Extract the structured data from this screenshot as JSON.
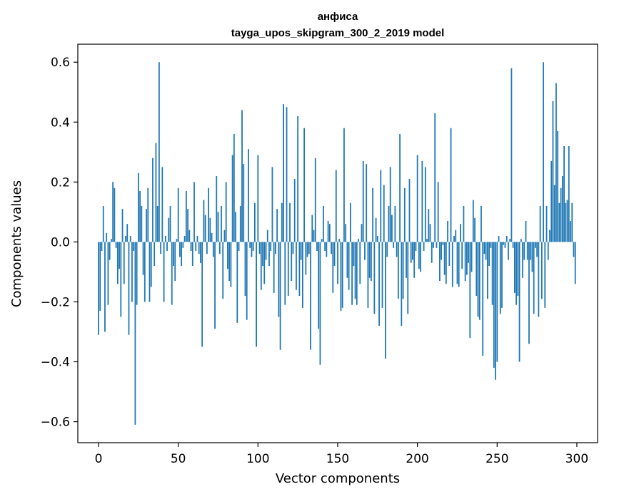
{
  "chart_data": {
    "type": "bar",
    "title_line1": "анфиса",
    "title_line2": "tayga_upos_skipgram_300_2_2019 model",
    "xlabel": "Vector components",
    "ylabel": "Components values",
    "xlim": [
      -13,
      313
    ],
    "ylim": [
      -0.67,
      0.66
    ],
    "xticks": [
      0,
      50,
      100,
      150,
      200,
      250,
      300
    ],
    "yticks": [
      -0.6,
      -0.4,
      -0.2,
      0.0,
      0.2,
      0.4,
      0.6
    ],
    "ytick_labels": [
      "−0.6",
      "−0.4",
      "−0.2",
      "0.0",
      "0.2",
      "0.4",
      "0.6"
    ],
    "bar_color": "#1f77b4",
    "grid": false,
    "values": [
      -0.31,
      -0.23,
      -0.03,
      0.12,
      -0.3,
      0.03,
      -0.21,
      -0.06,
      0.01,
      0.2,
      0.18,
      -0.02,
      -0.14,
      -0.09,
      -0.25,
      0.11,
      -0.14,
      0.02,
      0.06,
      -0.31,
      0.02,
      -0.2,
      -0.03,
      -0.61,
      -0.21,
      0.23,
      0.17,
      0.12,
      -0.11,
      -0.2,
      0.11,
      0.18,
      -0.2,
      -0.15,
      0.28,
      -0.08,
      0.33,
      0.12,
      0.6,
      -0.04,
      0.25,
      -0.2,
      0.02,
      -0.03,
      0.08,
      0.12,
      -0.21,
      -0.08,
      -0.13,
      0.01,
      0.18,
      -0.05,
      -0.08,
      -0.02,
      0.02,
      0.17,
      0.11,
      0.04,
      -0.03,
      -0.08,
      0.2,
      -0.03,
      0.02,
      -0.04,
      -0.07,
      -0.35,
      0.14,
      0.09,
      -0.04,
      0.18,
      0.08,
      0.03,
      -0.05,
      -0.29,
      0.22,
      0.1,
      -0.04,
      0.12,
      -0.19,
      0.04,
      0.2,
      -0.09,
      -0.13,
      -0.15,
      0.29,
      0.36,
      0.1,
      -0.27,
      -0.03,
      0.12,
      0.44,
      0.26,
      -0.18,
      -0.26,
      0.31,
      -0.02,
      -0.05,
      -0.03,
      0.13,
      -0.35,
      0.29,
      -0.04,
      -0.16,
      -0.08,
      -0.14,
      -0.06,
      0.04,
      -0.08,
      -0.03,
      0.25,
      -0.17,
      -0.04,
      0.11,
      -0.25,
      -0.36,
      0.13,
      0.46,
      -0.21,
      0.45,
      -0.18,
      0.13,
      -0.13,
      -0.04,
      0.21,
      -0.16,
      0.42,
      -0.18,
      -0.06,
      -0.22,
      0.38,
      -0.11,
      -0.05,
      -0.04,
      -0.36,
      0.09,
      0.04,
      0.28,
      -0.03,
      -0.29,
      -0.41,
      0.01,
      0.12,
      -0.03,
      -0.05,
      0.07,
      0.06,
      -0.04,
      -0.17,
      -0.08,
      0.24,
      -0.14,
      0.01,
      -0.23,
      -0.22,
      0.38,
      0.06,
      -0.12,
      -0.16,
      0.13,
      -0.21,
      -0.08,
      -0.19,
      -0.21,
      0.01,
      -0.14,
      0.06,
      0.27,
      -0.06,
      0.26,
      -0.22,
      -0.12,
      -0.13,
      0.18,
      -0.24,
      0.08,
      0.02,
      -0.28,
      0.24,
      -0.22,
      0.19,
      -0.39,
      -0.05,
      0.12,
      0.25,
      0.09,
      -0.02,
      0.12,
      -0.05,
      -0.19,
      0.36,
      -0.28,
      -0.19,
      0.18,
      -0.12,
      -0.24,
      0.21,
      -0.07,
      -0.06,
      -0.12,
      -0.03,
      0.29,
      -0.09,
      -0.1,
      0.27,
      -0.03,
      0.25,
      0.01,
      0.11,
      0.06,
      -0.07,
      -0.02,
      0.43,
      -0.02,
      0.2,
      -0.13,
      -0.06,
      -0.01,
      -0.11,
      -0.14,
      0.07,
      -0.08,
      0.38,
      -0.15,
      0.02,
      0.04,
      -0.14,
      -0.15,
      0.06,
      -0.09,
      0.12,
      -0.13,
      -0.11,
      -0.07,
      -0.32,
      -0.1,
      0.14,
      0.08,
      -0.18,
      -0.25,
      -0.26,
      0.12,
      -0.38,
      -0.04,
      -0.06,
      -0.19,
      -0.08,
      -0.02,
      -0.21,
      -0.42,
      -0.46,
      -0.4,
      0.02,
      -0.24,
      -0.22,
      -0.01,
      -0.02,
      0.02,
      -0.06,
      0.01,
      0.58,
      -0.02,
      -0.17,
      -0.21,
      -0.18,
      -0.4,
      0.01,
      -0.12,
      -0.06,
      0.07,
      -0.06,
      -0.34,
      -0.06,
      -0.1,
      -0.24,
      -0.02,
      -0.05,
      -0.25,
      0.12,
      -0.19,
      0.6,
      -0.22,
      0.12,
      -0.06,
      0.04,
      0.27,
      0.47,
      0.19,
      0.53,
      0.37,
      0.13,
      0.18,
      0.22,
      0.32,
      0.13,
      0.14,
      0.32,
      0.07,
      0.13,
      -0.05,
      -0.14
    ]
  }
}
